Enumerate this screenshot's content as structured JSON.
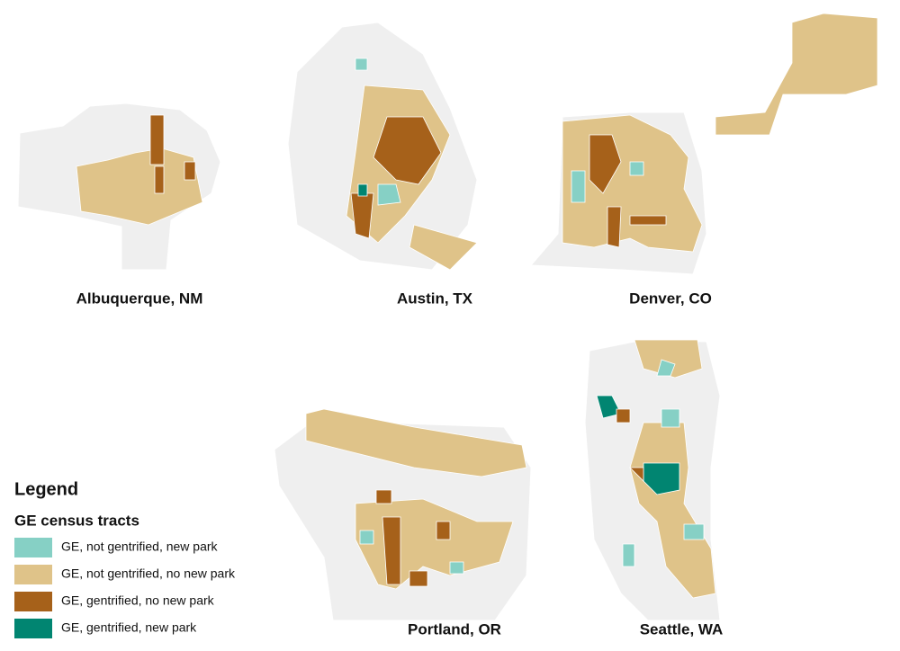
{
  "maps": [
    {
      "label": "Albuquerque, NM"
    },
    {
      "label": "Austin, TX"
    },
    {
      "label": "Denver, CO"
    },
    {
      "label": "Portland, OR"
    },
    {
      "label": "Seattle, WA"
    }
  ],
  "legend": {
    "title": "Legend",
    "subtitle": "GE census tracts",
    "items": [
      {
        "label": "GE, not gentrified, new park",
        "color": "#86d0c5"
      },
      {
        "label": "GE, not gentrified, no new park",
        "color": "#dfc389"
      },
      {
        "label": "GE, gentrified, no new park",
        "color": "#a6611a"
      },
      {
        "label": "GE, gentrified, new park",
        "color": "#018571"
      }
    ]
  }
}
